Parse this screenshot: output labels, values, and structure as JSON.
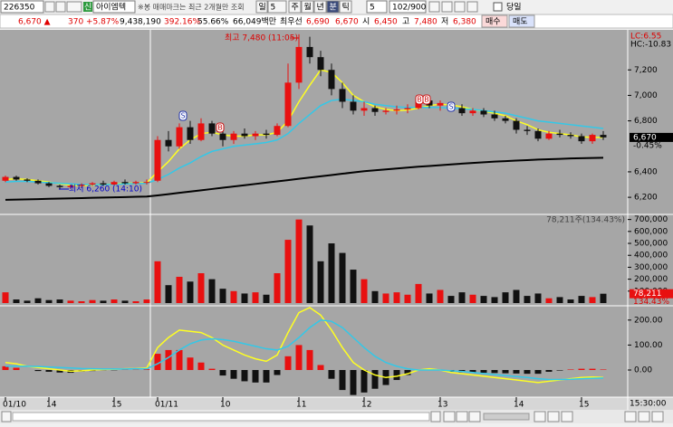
{
  "toolbar": {
    "code": "226350",
    "badge": "신",
    "name": "아이엠텍",
    "notice": "※봉 매매마크는 최근 2개월만 조회",
    "periods": [
      "일",
      "5",
      "주",
      "월",
      "년",
      "분",
      "틱"
    ],
    "tick_count": "5",
    "page": "102/900",
    "today": "당일"
  },
  "quote": {
    "price": "6,670 ▲",
    "change": "370",
    "rate": "+5.87%",
    "volume": "9,438,190",
    "volume_ratio": "392.16%",
    "turnover": "55.66%",
    "amount": "66,049백만",
    "best_label": "최우선",
    "ask": "6,690",
    "bid": "6,670",
    "open_label": "시",
    "open": "6,450",
    "high_label": "고",
    "high": "7,480",
    "low_label": "저",
    "low": "6,380",
    "buy": "매수",
    "sell": "매도"
  },
  "time_label": "15:30:00",
  "chart_data": [
    {
      "type": "candlestick",
      "categories": [
        "01/10",
        null,
        null,
        null,
        "14",
        null,
        null,
        null,
        null,
        null,
        "15",
        null,
        null,
        null,
        "01/11",
        null,
        null,
        null,
        null,
        null,
        "10",
        null,
        null,
        null,
        null,
        null,
        null,
        "11",
        null,
        null,
        null,
        null,
        null,
        "12",
        null,
        null,
        null,
        null,
        null,
        null,
        "13",
        null,
        null,
        null,
        null,
        null,
        null,
        "14",
        null,
        null,
        null,
        null,
        null,
        "15",
        null,
        null
      ],
      "open": [
        6330,
        6360,
        6340,
        6330,
        6310,
        6290,
        6280,
        6290,
        6300,
        6310,
        6300,
        6320,
        6310,
        6320,
        6330,
        6650,
        6600,
        6750,
        6650,
        6780,
        6700,
        6650,
        6700,
        6680,
        6700,
        6690,
        6760,
        7100,
        7380,
        7300,
        7200,
        7050,
        6950,
        6880,
        6900,
        6870,
        6880,
        6890,
        6900,
        6960,
        6920,
        6940,
        6900,
        6860,
        6880,
        6850,
        6820,
        6800,
        6730,
        6720,
        6660,
        6700,
        6690,
        6680,
        6640,
        6690
      ],
      "high": [
        6370,
        6370,
        6350,
        6340,
        6320,
        6300,
        6300,
        6310,
        6320,
        6330,
        6330,
        6340,
        6330,
        6340,
        6680,
        6720,
        6780,
        6800,
        6820,
        6800,
        6730,
        6720,
        6740,
        6720,
        6730,
        6780,
        7250,
        7480,
        7460,
        7350,
        7250,
        7100,
        7000,
        6950,
        6920,
        6900,
        6920,
        6930,
        6980,
        6990,
        6960,
        6950,
        6930,
        6900,
        6900,
        6880,
        6840,
        6820,
        6760,
        6740,
        6720,
        6730,
        6710,
        6700,
        6700,
        6720
      ],
      "low": [
        6320,
        6330,
        6320,
        6300,
        6280,
        6260,
        6270,
        6280,
        6290,
        6290,
        6290,
        6300,
        6300,
        6300,
        6320,
        6560,
        6580,
        6620,
        6640,
        6680,
        6600,
        6620,
        6660,
        6650,
        6660,
        6680,
        6750,
        7050,
        7250,
        7150,
        7000,
        6900,
        6850,
        6840,
        6840,
        6850,
        6850,
        6860,
        6890,
        6900,
        6880,
        6880,
        6840,
        6840,
        6830,
        6800,
        6780,
        6700,
        6690,
        6640,
        6650,
        6670,
        6660,
        6620,
        6620,
        6650
      ],
      "close": [
        6360,
        6340,
        6330,
        6310,
        6290,
        6280,
        6290,
        6300,
        6310,
        6300,
        6320,
        6310,
        6320,
        6320,
        6650,
        6600,
        6750,
        6650,
        6780,
        6700,
        6650,
        6700,
        6680,
        6700,
        6690,
        6760,
        7100,
        7380,
        7300,
        7200,
        7050,
        6950,
        6880,
        6900,
        6870,
        6880,
        6890,
        6900,
        6960,
        6920,
        6940,
        6900,
        6860,
        6880,
        6850,
        6820,
        6800,
        6730,
        6720,
        6660,
        6700,
        6690,
        6680,
        6640,
        6690,
        6670
      ],
      "up_color": "#e81010",
      "down_color": "#111111",
      "lines": [
        {
          "color": "#ffff22",
          "values": [
            6340,
            6345,
            6340,
            6330,
            6320,
            6305,
            6295,
            6290,
            6295,
            6300,
            6305,
            6310,
            6312,
            6315,
            6400,
            6480,
            6580,
            6650,
            6700,
            6710,
            6690,
            6680,
            6680,
            6690,
            6690,
            6710,
            6800,
            6950,
            7080,
            7200,
            7180,
            7100,
            7000,
            6950,
            6910,
            6890,
            6880,
            6885,
            6900,
            6920,
            6930,
            6925,
            6910,
            6890,
            6875,
            6860,
            6840,
            6800,
            6770,
            6730,
            6710,
            6700,
            6690,
            6675,
            6670,
            6670
          ]
        },
        {
          "color": "#33c8e8",
          "values": [
            6320,
            6325,
            6325,
            6320,
            6315,
            6310,
            6305,
            6300,
            6300,
            6300,
            6302,
            6305,
            6308,
            6310,
            6340,
            6380,
            6430,
            6470,
            6520,
            6560,
            6580,
            6600,
            6610,
            6620,
            6630,
            6650,
            6700,
            6780,
            6850,
            6920,
            6960,
            6970,
            6960,
            6950,
            6930,
            6920,
            6910,
            6905,
            6905,
            6905,
            6905,
            6900,
            6895,
            6890,
            6880,
            6870,
            6860,
            6840,
            6820,
            6800,
            6790,
            6780,
            6770,
            6760,
            6750,
            6740
          ]
        },
        {
          "color": "#000000",
          "values": [
            6180,
            6182,
            6184,
            6186,
            6188,
            6190,
            6192,
            6194,
            6196,
            6198,
            6200,
            6202,
            6204,
            6206,
            6215,
            6225,
            6235,
            6245,
            6255,
            6265,
            6275,
            6285,
            6295,
            6305,
            6315,
            6325,
            6335,
            6345,
            6355,
            6365,
            6375,
            6385,
            6395,
            6405,
            6412,
            6419,
            6426,
            6433,
            6440,
            6446,
            6452,
            6458,
            6464,
            6470,
            6475,
            6480,
            6484,
            6488,
            6492,
            6496,
            6499,
            6502,
            6505,
            6507,
            6509,
            6510
          ]
        }
      ],
      "ylim": [
        6080,
        7500
      ],
      "yticks": [
        {
          "value": 6200,
          "label": "6,200"
        },
        {
          "value": 6400,
          "label": "6,400"
        },
        {
          "value": 6800,
          "label": "6,800"
        },
        {
          "value": 7000,
          "label": "7,000"
        },
        {
          "value": 7200,
          "label": "7,200"
        }
      ],
      "high_annotation": "최고 7,480 (11:05)",
      "low_annotation": "최저 6,260 (14:10)",
      "last": {
        "value": 6670,
        "label": "6,670"
      },
      "last_change": "-0.45%",
      "lc_label": "LC:6.55",
      "hc_label": "HC:-10.83",
      "signals": [
        "S",
        "B",
        "B",
        "B",
        "S"
      ]
    },
    {
      "type": "bar",
      "values": [
        90000,
        30000,
        20000,
        40000,
        25000,
        30000,
        20000,
        15000,
        25000,
        20000,
        30000,
        20000,
        15000,
        30000,
        350000,
        150000,
        220000,
        180000,
        250000,
        200000,
        120000,
        100000,
        80000,
        90000,
        70000,
        250000,
        530000,
        700000,
        650000,
        350000,
        500000,
        420000,
        280000,
        200000,
        100000,
        80000,
        90000,
        70000,
        160000,
        80000,
        110000,
        60000,
        90000,
        70000,
        60000,
        50000,
        90000,
        110000,
        60000,
        80000,
        40000,
        50000,
        30000,
        60000,
        50000,
        78211
      ],
      "ylim": [
        0,
        720000
      ],
      "yticks": [
        {
          "value": 100000,
          "label": "100,000"
        },
        {
          "value": 200000,
          "label": "200,000"
        },
        {
          "value": 300000,
          "label": "300,000"
        },
        {
          "value": 400000,
          "label": "400,000"
        },
        {
          "value": 500000,
          "label": "500,000"
        },
        {
          "value": 600000,
          "label": "600,000"
        },
        {
          "value": 700000,
          "label": "700,000"
        }
      ],
      "header": "78,211주(134.43%)",
      "last": {
        "value": 78211,
        "label": "78,211"
      },
      "last_ratio": "134.43%"
    },
    {
      "type": "macd",
      "series": [
        {
          "color": "#ffff22",
          "values": [
            30,
            25,
            15,
            10,
            5,
            0,
            -5,
            -3,
            0,
            2,
            3,
            5,
            6,
            8,
            90,
            130,
            160,
            155,
            150,
            130,
            100,
            80,
            60,
            45,
            35,
            60,
            150,
            230,
            250,
            220,
            160,
            90,
            30,
            0,
            -20,
            -30,
            -25,
            -15,
            0,
            5,
            0,
            -10,
            -15,
            -20,
            -25,
            -30,
            -35,
            -40,
            -45,
            -50,
            -45,
            -40,
            -35,
            -30,
            -28,
            -30
          ]
        },
        {
          "color": "#33c8e8",
          "values": [
            15,
            16,
            15,
            14,
            12,
            10,
            8,
            6,
            5,
            4,
            4,
            4,
            5,
            5,
            25,
            50,
            80,
            105,
            120,
            125,
            122,
            115,
            105,
            95,
            85,
            80,
            95,
            130,
            170,
            200,
            195,
            170,
            130,
            90,
            55,
            30,
            15,
            5,
            0,
            0,
            0,
            -3,
            -6,
            -10,
            -14,
            -18,
            -22,
            -26,
            -30,
            -35,
            -38,
            -38,
            -37,
            -35,
            -33,
            -32
          ]
        }
      ],
      "histogram": [
        15,
        9,
        0,
        -4,
        -7,
        -10,
        -11,
        -6,
        -4,
        -1,
        -1,
        1,
        1,
        3,
        65,
        80,
        80,
        50,
        30,
        5,
        -22,
        -35,
        -45,
        -50,
        -50,
        -20,
        55,
        100,
        80,
        20,
        -35,
        -80,
        -100,
        -90,
        -75,
        -60,
        -40,
        -20,
        0,
        5,
        0,
        -7,
        -9,
        -10,
        -11,
        -12,
        -13,
        -14,
        -15,
        -15,
        -7,
        -2,
        2,
        5,
        5,
        2
      ],
      "ylim": [
        -105,
        250
      ],
      "yticks": [
        {
          "value": 0,
          "label": "0.00"
        },
        {
          "value": 100,
          "label": "100.00"
        },
        {
          "value": 200,
          "label": "200.00"
        }
      ]
    }
  ]
}
